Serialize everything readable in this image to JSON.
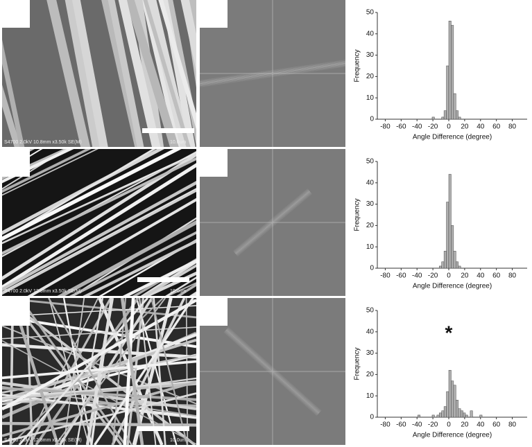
{
  "panels": [
    {
      "sem_caption": "S4700 2.0kV 10.8mm x3.50k SE(M)",
      "scale_bar": "10.0um"
    },
    {
      "sem_caption": "S4700 2.0kV 12.8mm x3.50k SE(M)",
      "scale_bar": "10.0um"
    },
    {
      "sem_caption": "S4700 2.0kV 12.8mm x3.50k SE(M)",
      "scale_bar": "10.0um"
    }
  ],
  "chart_data": [
    {
      "type": "histogram",
      "x_label": "Angle Difference (degree)",
      "y_label": "Frequency",
      "bins": [
        -24,
        -21,
        -18,
        -15,
        -12,
        -9,
        -6,
        -3,
        0,
        3,
        6,
        9,
        12,
        15,
        18,
        21,
        24
      ],
      "values": [
        0,
        1,
        0,
        0,
        0,
        1,
        4,
        25,
        46,
        44,
        12,
        4,
        1,
        0,
        0,
        0
      ],
      "color": "#b0b0b0",
      "xlim": [
        -90,
        90
      ],
      "ylim": [
        0,
        50
      ],
      "xticks": [
        -80,
        -60,
        -40,
        -20,
        0,
        20,
        40,
        60,
        80
      ],
      "yticks": [
        0,
        10,
        20,
        30,
        40,
        50
      ]
    },
    {
      "type": "histogram",
      "x_label": "Angle Difference (degree)",
      "y_label": "Frequency",
      "bins": [
        -24,
        -21,
        -18,
        -15,
        -12,
        -9,
        -6,
        -3,
        0,
        3,
        6,
        9,
        12,
        15,
        18,
        21,
        24
      ],
      "values": [
        0,
        0,
        0,
        0,
        1,
        3,
        8,
        31,
        44,
        20,
        8,
        3,
        1,
        0,
        0,
        0
      ],
      "color": "#b0b0b0",
      "xlim": [
        -90,
        90
      ],
      "ylim": [
        0,
        50
      ],
      "xticks": [
        -80,
        -60,
        -40,
        -20,
        0,
        20,
        40,
        60,
        80
      ],
      "yticks": [
        0,
        10,
        20,
        30,
        40,
        50
      ]
    },
    {
      "type": "histogram",
      "x_label": "Angle Difference (degree)",
      "y_label": "Frequency",
      "annotation": "*",
      "bins": [
        -42,
        -39,
        -36,
        -33,
        -30,
        -27,
        -24,
        -21,
        -18,
        -15,
        -12,
        -9,
        -6,
        -3,
        0,
        3,
        6,
        9,
        12,
        15,
        18,
        21,
        24,
        27,
        30,
        33,
        36,
        39,
        42
      ],
      "values": [
        0,
        1,
        0,
        0,
        0,
        0,
        0,
        1,
        0,
        1,
        2,
        3,
        5,
        12,
        22,
        17,
        15,
        8,
        4,
        3,
        2,
        1,
        0,
        3,
        0,
        0,
        0,
        1
      ],
      "color": "#b0b0b0",
      "xlim": [
        -90,
        90
      ],
      "ylim": [
        0,
        50
      ],
      "xticks": [
        -80,
        -60,
        -40,
        -20,
        0,
        20,
        40,
        60,
        80
      ],
      "yticks": [
        0,
        10,
        20,
        30,
        40,
        50
      ]
    }
  ]
}
